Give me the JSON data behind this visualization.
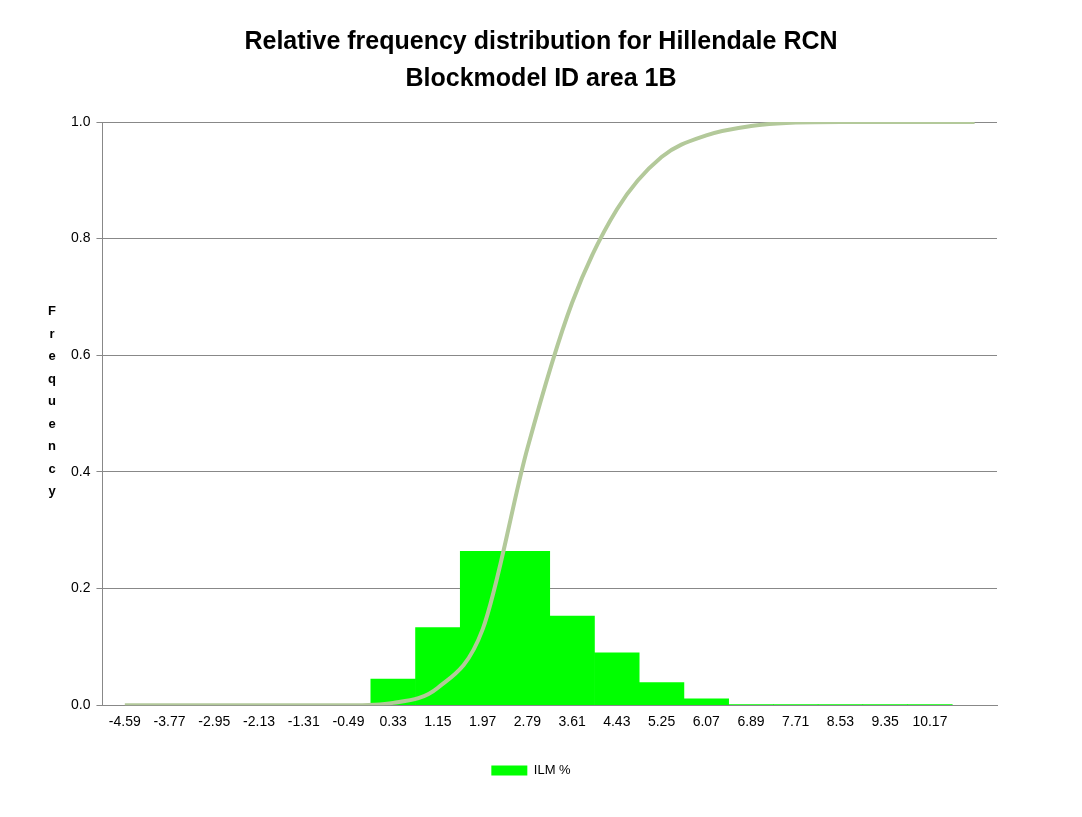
{
  "chart_data": {
    "type": "bar",
    "title": "Relative frequency distribution for Hillendale RCN Blockmodel ID area 1B",
    "ylabel": "Frequency",
    "categories": [
      "-4.59",
      "-3.77",
      "-2.95",
      "-2.13",
      "-1.31",
      "-0.49",
      "0.33",
      "1.15",
      "1.97",
      "2.79",
      "3.61",
      "4.43",
      "5.25",
      "6.07",
      "6.89",
      "7.71",
      "8.53",
      "9.35",
      "10.17",
      null
    ],
    "series": [
      {
        "name": "ILM %",
        "color": "#00ff00",
        "values": [
          null,
          null,
          null,
          null,
          null,
          null,
          0.045,
          0.133,
          0.264,
          0.264,
          0.153,
          0.09,
          0.039,
          0.011,
          0.001,
          0.001,
          0.001,
          0.001,
          0.001,
          null
        ]
      },
      {
        "type": "line",
        "color": "#b3c99a",
        "values": [
          0,
          0,
          0,
          0,
          0,
          0,
          0.004,
          0.03,
          0.13,
          0.44,
          0.69,
          0.85,
          0.94,
          0.977,
          0.993,
          0.999,
          1,
          1,
          1,
          1
        ]
      }
    ],
    "ylim": [
      0,
      1
    ],
    "yticks": [
      {
        "value": 0,
        "label": "0.0"
      },
      {
        "value": 0.2,
        "label": "0.2"
      },
      {
        "value": 0.4,
        "label": "0.4"
      },
      {
        "value": 0.6,
        "label": "0.6"
      },
      {
        "value": 0.8,
        "label": "0.8"
      },
      {
        "value": 1,
        "label": "1.0"
      }
    ],
    "grid": "y",
    "legend": "bottom",
    "marker": "none"
  }
}
